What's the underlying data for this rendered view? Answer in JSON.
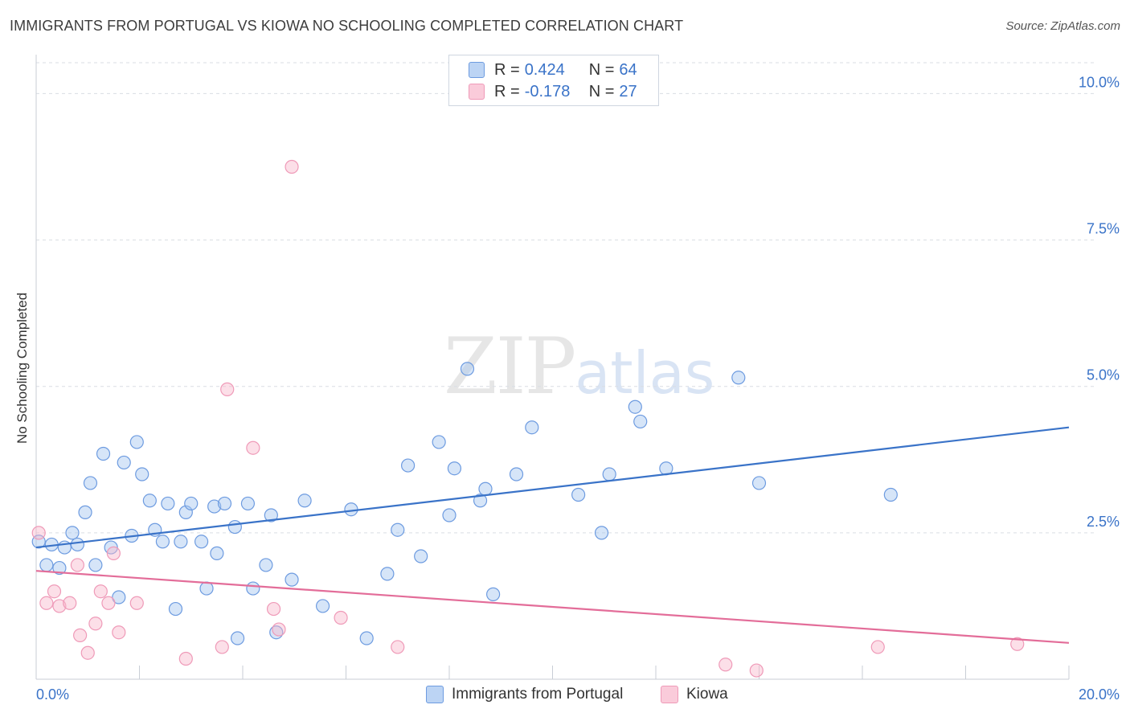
{
  "header": {
    "title": "IMMIGRANTS FROM PORTUGAL VS KIOWA NO SCHOOLING COMPLETED CORRELATION CHART",
    "source": "Source: ZipAtlas.com"
  },
  "watermark": {
    "zip": "ZIP",
    "atlas": "atlas"
  },
  "colors": {
    "blue": "#3a73c8",
    "blue_fill": "rgba(165,197,240,0.45)",
    "blue_stroke": "#6d9be0",
    "pink": "#e36d99",
    "pink_fill": "rgba(248,185,205,0.45)",
    "pink_stroke": "#ef9ab8",
    "grid": "#d9dde3",
    "tick_text": "#3a73c8"
  },
  "legend": {
    "rows": [
      {
        "r_label": "R =",
        "r_value": "0.424",
        "n_label": "N =",
        "n_value": "64"
      },
      {
        "r_label": "R =",
        "r_value": "-0.178",
        "n_label": "N =",
        "n_value": "27"
      }
    ]
  },
  "chart_data": {
    "type": "scatter",
    "title": "IMMIGRANTS FROM PORTUGAL VS KIOWA NO SCHOOLING COMPLETED CORRELATION CHART",
    "xlabel": "",
    "ylabel": "No Schooling Completed",
    "xlim": [
      0,
      20
    ],
    "ylim": [
      0,
      10.5
    ],
    "x_tick_labels": [
      "0.0%",
      "20.0%"
    ],
    "y_ticks": [
      2.5,
      5.0,
      7.5,
      10.0
    ],
    "y_tick_labels": [
      "2.5%",
      "5.0%",
      "7.5%",
      "10.0%"
    ],
    "legend_position": "top-center",
    "series": [
      {
        "name": "Immigrants from Portugal",
        "color": "blue",
        "trend": {
          "x": [
            0,
            20
          ],
          "y": [
            2.25,
            4.3
          ]
        },
        "points": [
          [
            0.05,
            2.35
          ],
          [
            0.2,
            1.95
          ],
          [
            0.3,
            2.3
          ],
          [
            0.45,
            1.9
          ],
          [
            0.55,
            2.25
          ],
          [
            0.7,
            2.5
          ],
          [
            0.8,
            2.3
          ],
          [
            0.95,
            2.85
          ],
          [
            1.05,
            3.35
          ],
          [
            1.15,
            1.95
          ],
          [
            1.3,
            3.85
          ],
          [
            1.45,
            2.25
          ],
          [
            1.6,
            1.4
          ],
          [
            1.7,
            3.7
          ],
          [
            1.85,
            2.45
          ],
          [
            1.95,
            4.05
          ],
          [
            2.05,
            3.5
          ],
          [
            2.2,
            3.05
          ],
          [
            2.3,
            2.55
          ],
          [
            2.45,
            2.35
          ],
          [
            2.55,
            3.0
          ],
          [
            2.8,
            2.35
          ],
          [
            2.9,
            2.85
          ],
          [
            3.0,
            3.0
          ],
          [
            3.2,
            2.35
          ],
          [
            3.3,
            1.55
          ],
          [
            3.45,
            2.95
          ],
          [
            3.5,
            2.15
          ],
          [
            3.65,
            3.0
          ],
          [
            3.85,
            2.6
          ],
          [
            3.9,
            0.7
          ],
          [
            4.1,
            3.0
          ],
          [
            4.2,
            1.55
          ],
          [
            4.45,
            1.95
          ],
          [
            4.55,
            2.8
          ],
          [
            4.65,
            0.8
          ],
          [
            4.95,
            1.7
          ],
          [
            5.2,
            3.05
          ],
          [
            5.55,
            1.25
          ],
          [
            6.1,
            2.9
          ],
          [
            6.4,
            0.7
          ],
          [
            6.8,
            1.8
          ],
          [
            7.0,
            2.55
          ],
          [
            7.2,
            3.65
          ],
          [
            7.45,
            2.1
          ],
          [
            7.8,
            4.05
          ],
          [
            8.0,
            2.8
          ],
          [
            8.1,
            3.6
          ],
          [
            8.35,
            5.3
          ],
          [
            8.6,
            3.05
          ],
          [
            8.7,
            3.25
          ],
          [
            8.85,
            1.45
          ],
          [
            9.3,
            3.5
          ],
          [
            9.6,
            4.3
          ],
          [
            10.5,
            3.15
          ],
          [
            10.95,
            2.5
          ],
          [
            11.1,
            3.5
          ],
          [
            11.6,
            4.65
          ],
          [
            11.7,
            4.4
          ],
          [
            12.2,
            3.6
          ],
          [
            13.6,
            5.15
          ],
          [
            14.0,
            3.35
          ],
          [
            16.55,
            3.15
          ],
          [
            2.7,
            1.2
          ]
        ]
      },
      {
        "name": "Kiowa",
        "color": "pink",
        "trend": {
          "x": [
            0,
            20
          ],
          "y": [
            1.85,
            0.62
          ]
        },
        "points": [
          [
            0.05,
            2.5
          ],
          [
            0.2,
            1.3
          ],
          [
            0.35,
            1.5
          ],
          [
            0.45,
            1.25
          ],
          [
            0.65,
            1.3
          ],
          [
            0.8,
            1.95
          ],
          [
            0.85,
            0.75
          ],
          [
            1.0,
            0.45
          ],
          [
            1.15,
            0.95
          ],
          [
            1.25,
            1.5
          ],
          [
            1.4,
            1.3
          ],
          [
            1.5,
            2.15
          ],
          [
            1.6,
            0.8
          ],
          [
            1.95,
            1.3
          ],
          [
            2.9,
            0.35
          ],
          [
            3.6,
            0.55
          ],
          [
            3.7,
            4.95
          ],
          [
            4.2,
            3.95
          ],
          [
            4.6,
            1.2
          ],
          [
            4.7,
            0.85
          ],
          [
            4.95,
            8.75
          ],
          [
            5.9,
            1.05
          ],
          [
            7.0,
            0.55
          ],
          [
            13.35,
            0.25
          ],
          [
            13.95,
            0.15
          ],
          [
            16.3,
            0.55
          ],
          [
            19.0,
            0.6
          ]
        ]
      }
    ]
  }
}
